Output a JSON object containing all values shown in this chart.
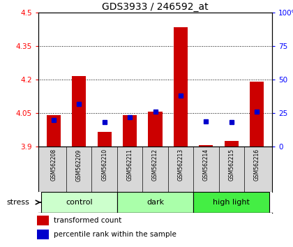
{
  "title": "GDS3933 / 246592_at",
  "samples": [
    "GSM562208",
    "GSM562209",
    "GSM562210",
    "GSM562211",
    "GSM562212",
    "GSM562213",
    "GSM562214",
    "GSM562215",
    "GSM562216"
  ],
  "transformed_counts": [
    4.04,
    4.215,
    3.965,
    4.04,
    4.055,
    4.435,
    3.905,
    3.925,
    4.19
  ],
  "percentile_ranks": [
    20,
    32,
    18,
    22,
    26,
    38,
    19,
    18,
    26
  ],
  "ylim_left": [
    3.9,
    4.5
  ],
  "ylim_right": [
    0,
    100
  ],
  "yticks_left": [
    3.9,
    4.05,
    4.2,
    4.35,
    4.5
  ],
  "yticks_right": [
    0,
    25,
    50,
    75,
    100
  ],
  "ytick_labels_left": [
    "3.9",
    "4.05",
    "4.2",
    "4.35",
    "4.5"
  ],
  "ytick_labels_right": [
    "0",
    "25",
    "50",
    "75",
    "100%"
  ],
  "groups": [
    {
      "label": "control",
      "indices": [
        0,
        1,
        2
      ],
      "color": "#ccffcc"
    },
    {
      "label": "dark",
      "indices": [
        3,
        4,
        5
      ],
      "color": "#aaffaa"
    },
    {
      "label": "high light",
      "indices": [
        6,
        7,
        8
      ],
      "color": "#44ee44"
    }
  ],
  "bar_color": "#cc0000",
  "dot_color": "#0000cc",
  "bar_width": 0.55,
  "bg_color": "#d8d8d8",
  "stress_label": "stress",
  "legend_items": [
    {
      "color": "#cc0000",
      "label": "transformed count"
    },
    {
      "color": "#0000cc",
      "label": "percentile rank within the sample"
    }
  ]
}
